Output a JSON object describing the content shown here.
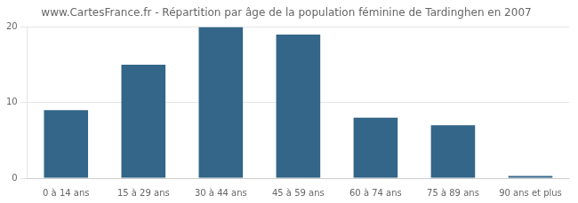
{
  "chart_data": {
    "type": "bar",
    "title": "www.CartesFrance.fr - Répartition par âge de la population féminine de Tardinghen en 2007",
    "categories": [
      "0 à 14 ans",
      "15 à 29 ans",
      "30 à 44 ans",
      "45 à 59 ans",
      "60 à 74 ans",
      "75 à 89 ans",
      "90 ans et plus"
    ],
    "values": [
      9,
      15,
      20,
      19,
      8,
      7,
      0.3
    ],
    "color": "#336688",
    "ylim": [
      0,
      20
    ],
    "yticks": [
      0,
      10,
      20
    ],
    "grid": true
  }
}
